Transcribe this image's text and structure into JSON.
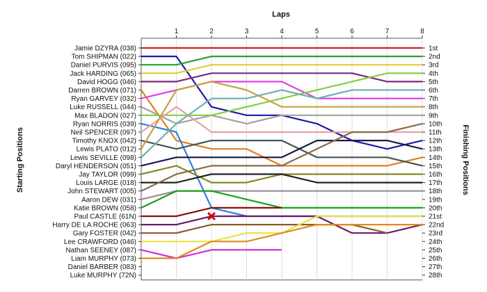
{
  "chart_data": {
    "type": "line",
    "title": "Laps",
    "ylabel_left": "Starting Positions",
    "ylabel_right": "Finishing Positions",
    "laps": [
      1,
      2,
      3,
      4,
      5,
      6,
      7,
      8
    ],
    "position_labels": [
      "1st",
      "2nd",
      "3rd",
      "4th",
      "5th",
      "6th",
      "7th",
      "8th",
      "9th",
      "10th",
      "11th",
      "12th",
      "13th",
      "14th",
      "15th",
      "16th",
      "17th",
      "18th",
      "19th",
      "20th",
      "21st",
      "22nd",
      "23rd",
      "24th",
      "25th",
      "26th",
      "27th",
      "28th"
    ],
    "retirement_marker": {
      "lap": 2,
      "position": 21
    },
    "series": [
      {
        "name": "Jamie DZYRA (038)",
        "color": "#cc2222",
        "positions": [
          1,
          1,
          1,
          1,
          1,
          1,
          1,
          1,
          1
        ]
      },
      {
        "name": "Tom SHIPMAN (022)",
        "color": "#1a1aaa",
        "positions": [
          2,
          2,
          8,
          9,
          9,
          10,
          12,
          13,
          12
        ]
      },
      {
        "name": "Daniel PURVIS (095)",
        "color": "#2e9e2e",
        "positions": [
          3,
          3,
          2,
          2,
          2,
          2,
          2,
          2,
          2
        ]
      },
      {
        "name": "Jack HARDING (065)",
        "color": "#e0d030",
        "positions": [
          4,
          4,
          3,
          3,
          3,
          3,
          3,
          3,
          3
        ]
      },
      {
        "name": "David HOGG (046)",
        "color": "#7a2a7a",
        "positions": [
          5,
          5,
          4,
          4,
          4,
          4,
          4,
          5,
          5
        ]
      },
      {
        "name": "Darren BROWN (071)",
        "color": "#e07f20",
        "positions": [
          6,
          12,
          13,
          13,
          15,
          15,
          15,
          15,
          14
        ]
      },
      {
        "name": "Ryan GARVEY (032)",
        "color": "#e040e0",
        "positions": [
          7,
          6,
          5,
          5,
          5,
          7,
          7,
          7,
          7
        ]
      },
      {
        "name": "Luke RUSSELL (044)",
        "color": "#a0a0a0",
        "positions": [
          8,
          10,
          9,
          10,
          9,
          9,
          9,
          9,
          9
        ]
      },
      {
        "name": "Max BLADON (027)",
        "color": "#80d040",
        "positions": [
          9,
          9,
          9,
          8,
          7,
          6,
          5,
          4,
          4
        ]
      },
      {
        "name": "Ryan NORRIS (039)",
        "color": "#3080e0",
        "positions": [
          10,
          11,
          20,
          21,
          21,
          21,
          21,
          21,
          21
        ]
      },
      {
        "name": "Neil SPENCER (097)",
        "color": "#e8a0a0",
        "positions": [
          11,
          8,
          11,
          11,
          11,
          11,
          11,
          11,
          11
        ]
      },
      {
        "name": "Timothy KNOX (042)",
        "color": "#445555",
        "positions": [
          12,
          13,
          12,
          12,
          12,
          14,
          14,
          14,
          15
        ]
      },
      {
        "name": "Lewis PLATO (012)",
        "color": "#c8a040",
        "positions": [
          13,
          6,
          5,
          6,
          8,
          8,
          8,
          8,
          8
        ]
      },
      {
        "name": "Lewis SEVILLE (098)",
        "color": "#70b0b0",
        "positions": [
          14,
          10,
          7,
          7,
          6,
          7,
          6,
          6,
          6
        ]
      },
      {
        "name": "Daryl HENDERSON (051)",
        "color": "#1a1a44",
        "positions": [
          15,
          14,
          14,
          14,
          14,
          12,
          12,
          12,
          13
        ]
      },
      {
        "name": "Jay TAYLOR (099)",
        "color": "#888822",
        "positions": [
          16,
          15,
          17,
          17,
          16,
          16,
          16,
          16,
          16
        ]
      },
      {
        "name": "Louis LARGE (018)",
        "color": "#222222",
        "positions": [
          17,
          17,
          16,
          16,
          16,
          17,
          17,
          17,
          17
        ]
      },
      {
        "name": "John STEWART (005)",
        "color": "#8a6a4a",
        "positions": [
          18,
          16,
          15,
          15,
          15,
          13,
          11,
          11,
          10
        ]
      },
      {
        "name": "Aaron DEW (031)",
        "color": "#9a8a9a",
        "positions": [
          19,
          18,
          18,
          18,
          18,
          18,
          18,
          18,
          18
        ]
      },
      {
        "name": "Katie BROWN (058)",
        "color": "#1aa01a",
        "positions": [
          20,
          18,
          18,
          19,
          20,
          20,
          20,
          20,
          20
        ]
      },
      {
        "name": "Paul CASTLE (61N)",
        "color": "#880e0e",
        "positions": [
          21,
          21,
          20,
          20,
          20,
          null,
          null,
          null,
          null
        ]
      },
      {
        "name": "Harry DE LA ROCHE (063)",
        "color": "#6a1a6a",
        "positions": [
          22,
          22,
          21,
          21,
          21,
          21,
          23,
          23,
          22
        ]
      },
      {
        "name": "Gary FOSTER (042)",
        "color": "#8a5a2a",
        "positions": [
          23,
          23,
          22,
          22,
          22,
          22,
          22,
          23,
          null
        ]
      },
      {
        "name": "Lee CRAWFORD (046)",
        "color": "#e8e040",
        "positions": [
          24,
          24,
          24,
          23,
          23,
          21,
          21,
          21,
          21
        ]
      },
      {
        "name": "Nathan SEENEY (087)",
        "color": "#d030d0",
        "positions": [
          25,
          26,
          25,
          25,
          25,
          null,
          null,
          null,
          null
        ]
      },
      {
        "name": "Liam MURPHY (073)",
        "color": "#e08a20",
        "positions": [
          26,
          26,
          24,
          24,
          23,
          22,
          22,
          22,
          22
        ]
      },
      {
        "name": "Daniel BARBER (083)",
        "color": "#ffffff",
        "positions": [
          27,
          null,
          null,
          null,
          null,
          null,
          null,
          null,
          null
        ]
      },
      {
        "name": "Luke MURPHY (72N)",
        "color": "#ffffff",
        "positions": [
          28,
          null,
          null,
          null,
          null,
          null,
          null,
          null,
          null
        ]
      }
    ]
  }
}
